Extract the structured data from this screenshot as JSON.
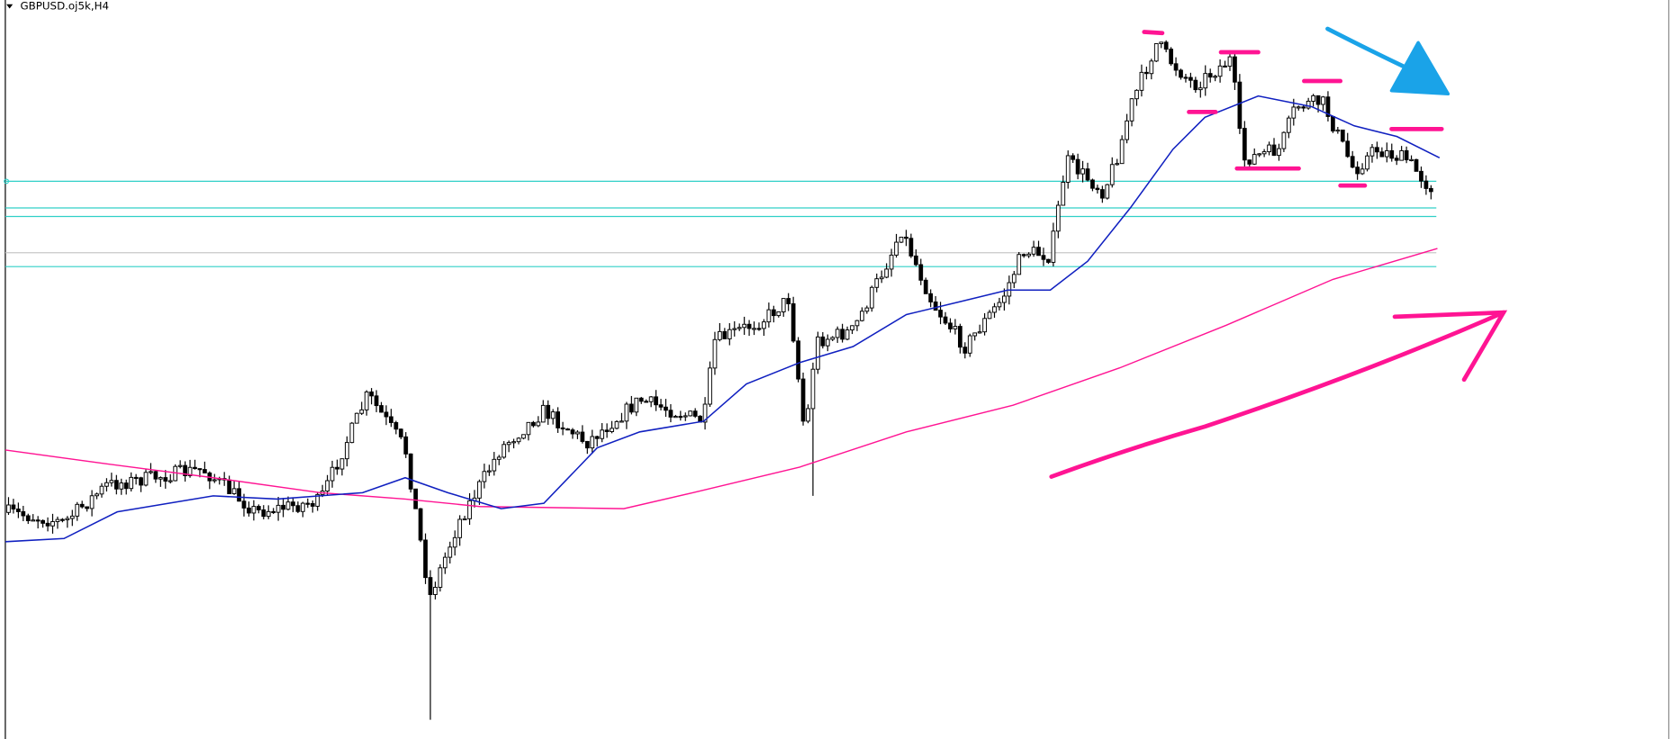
{
  "header": {
    "title": "GBPUSD.oj5k,H4"
  }
}
